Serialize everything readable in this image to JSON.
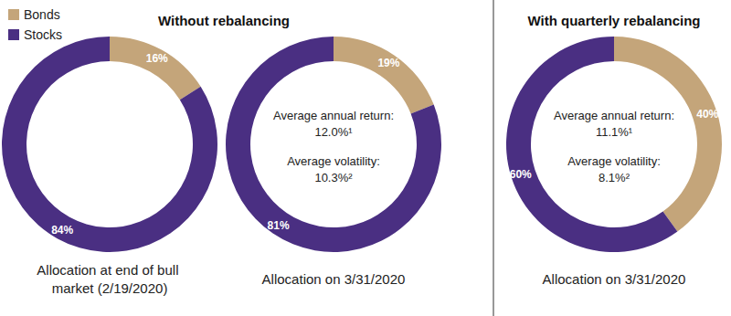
{
  "section_titles": [
    "Without rebalancing",
    "With quarterly rebalancing"
  ],
  "chart_data": [
    {
      "type": "pie",
      "categories": [
        "Bonds",
        "Stocks"
      ],
      "values": [
        16,
        84
      ],
      "value_labels": [
        "16%",
        "84%"
      ],
      "colors": [
        "#c4a57a",
        "#4a2f82"
      ],
      "data_labels": true,
      "legend": "top-left",
      "caption": "Allocation at end of bull market (2/19/2020)"
    },
    {
      "type": "pie",
      "categories": [
        "Bonds",
        "Stocks"
      ],
      "values": [
        19,
        81
      ],
      "value_labels": [
        "19%",
        "81%"
      ],
      "colors": [
        "#c4a57a",
        "#4a2f82"
      ],
      "data_labels": true,
      "annotations": [
        "Average annual return:",
        "12.0%¹",
        "Average volatility:",
        "10.3%²"
      ],
      "caption": "Allocation on 3/31/2020"
    },
    {
      "type": "pie",
      "categories": [
        "Bonds",
        "Stocks"
      ],
      "values": [
        40,
        60
      ],
      "value_labels": [
        "40%",
        "60%"
      ],
      "colors": [
        "#c4a57a",
        "#4a2f82"
      ],
      "data_labels": true,
      "annotations": [
        "Average annual return:",
        "11.1%¹",
        "Average volatility:",
        "8.1%²"
      ],
      "caption": "Allocation on 3/31/2020"
    }
  ]
}
